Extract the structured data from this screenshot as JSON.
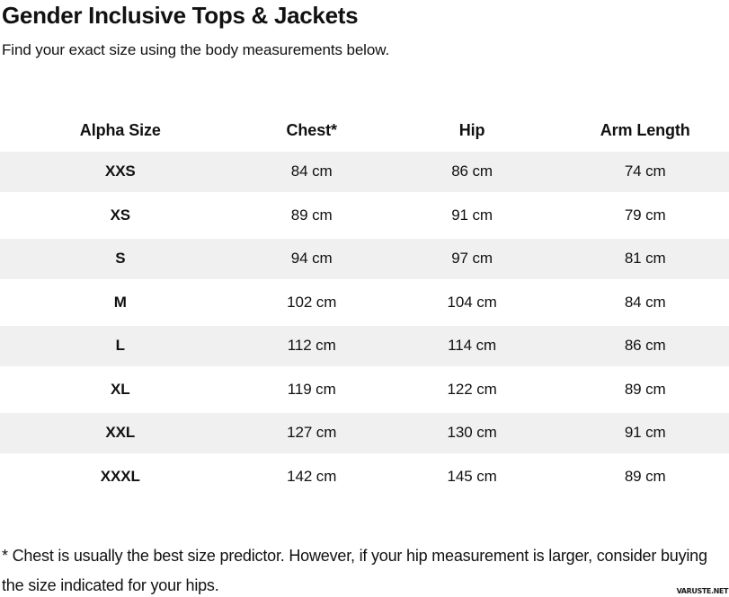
{
  "page": {
    "title": "Gender Inclusive Tops & Jackets",
    "subtitle": "Find your exact size using the body measurements below.",
    "footnote": "* Chest is usually the best size predictor. However, if your hip measurement is larger, consider buying the size indicated for your hips.",
    "watermark": "VARUSTE.NET"
  },
  "table": {
    "columns": [
      "Alpha Size",
      "Chest*",
      "Hip",
      "Arm Length"
    ],
    "rows": [
      {
        "size": "XXS",
        "chest": "84 cm",
        "hip": "86 cm",
        "arm": "74 cm"
      },
      {
        "size": "XS",
        "chest": "89 cm",
        "hip": "91 cm",
        "arm": "79 cm"
      },
      {
        "size": "S",
        "chest": "94 cm",
        "hip": "97 cm",
        "arm": "81 cm"
      },
      {
        "size": "M",
        "chest": "102 cm",
        "hip": "104 cm",
        "arm": "84 cm"
      },
      {
        "size": "L",
        "chest": "112 cm",
        "hip": "114 cm",
        "arm": "86 cm"
      },
      {
        "size": "XL",
        "chest": "119 cm",
        "hip": "122 cm",
        "arm": "89 cm"
      },
      {
        "size": "XXL",
        "chest": "127 cm",
        "hip": "130 cm",
        "arm": "91 cm"
      },
      {
        "size": "XXXL",
        "chest": "142 cm",
        "hip": "145 cm",
        "arm": "89 cm"
      }
    ]
  },
  "colors": {
    "text": "#111111",
    "stripe": "#f0f0f0",
    "bg": "#ffffff"
  }
}
